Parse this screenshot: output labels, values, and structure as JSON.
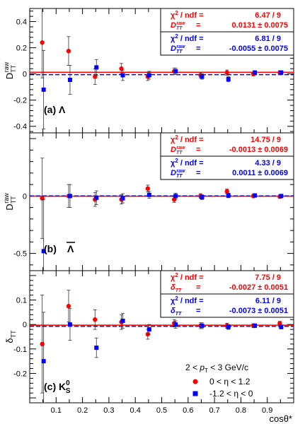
{
  "x_axis": {
    "label": "cosθ*",
    "range": [
      0.0,
      1.0
    ],
    "tick_labels": [
      "0.1",
      "0.2",
      "0.3",
      "0.4",
      "0.5",
      "0.6",
      "0.7",
      "0.8",
      "0.9"
    ]
  },
  "legend": {
    "pt_range": "2 < p_T < 3 GeV/c",
    "entries": [
      {
        "label": "0 < η < 1.2",
        "color": "#ff0000",
        "marker": "circle"
      },
      {
        "label": "-1.2 < η < 0",
        "color": "#0000ff",
        "marker": "square"
      }
    ]
  },
  "colors": {
    "red": "#ff0000",
    "blue": "#0000ff",
    "axis": "#000000"
  },
  "chart_data": [
    {
      "type": "scatter",
      "panel_label": "(a) Λ",
      "ylabel": "D_TT^raw",
      "ylim": [
        -0.45,
        0.5
      ],
      "y_tick_labels": [
        "-0.4",
        "-0.2",
        "0",
        "0.2",
        "0.4"
      ],
      "fit_box": [
        {
          "chi2_label": "χ² / ndf",
          "chi2_value": "6.47 / 9",
          "param_label": "D_TT^raw",
          "param_value": "0.0131 ± 0.0075",
          "color": "#ff0000"
        },
        {
          "chi2_label": "χ² / ndf",
          "chi2_value": "6.81 / 9",
          "param_label": "D_TT^raw",
          "param_value": "-0.0055 ± 0.0075",
          "color": "#0000ff"
        }
      ],
      "fit_lines": [
        {
          "series": "0 < η < 1.2",
          "value": 0.0131,
          "style": "solid"
        },
        {
          "series": "-1.2 < η < 0",
          "value": -0.0055,
          "style": "dashed"
        }
      ],
      "series": [
        {
          "name": "0 < η < 1.2",
          "x": [
            0.05,
            0.15,
            0.25,
            0.35,
            0.45,
            0.55,
            0.65,
            0.75,
            0.85,
            0.95
          ],
          "y": [
            0.24,
            0.175,
            -0.02,
            0.04,
            -0.02,
            0.02,
            -0.01,
            0.01,
            0.0,
            0.01
          ],
          "err": [
            0.27,
            0.11,
            0.06,
            0.04,
            0.03,
            0.025,
            0.02,
            0.02,
            0.015,
            0.015
          ]
        },
        {
          "name": "-1.2 < η < 0",
          "x": [
            0.05,
            0.15,
            0.25,
            0.35,
            0.45,
            0.55,
            0.65,
            0.75,
            0.85,
            0.95
          ],
          "y": [
            -0.12,
            -0.045,
            0.05,
            -0.01,
            -0.01,
            0.02,
            -0.02,
            -0.04,
            0.01,
            0.01
          ],
          "err": [
            0.3,
            0.11,
            0.06,
            0.04,
            0.03,
            0.025,
            0.02,
            0.02,
            0.015,
            0.015
          ]
        }
      ]
    },
    {
      "type": "scatter",
      "panel_label": "(b) Λ̄",
      "ylabel": "D_TT^raw",
      "ylim": [
        -0.65,
        0.55
      ],
      "y_tick_labels": [
        "-0.5",
        "0"
      ],
      "fit_box": [
        {
          "chi2_label": "χ² / ndf",
          "chi2_value": "14.75 / 9",
          "param_label": "D_TT^raw",
          "param_value": "-0.0013 ± 0.0069",
          "color": "#ff0000"
        },
        {
          "chi2_label": "χ² / ndf",
          "chi2_value": "4.33 / 9",
          "param_label": "D_TT^raw",
          "param_value": "0.0011 ± 0.0069",
          "color": "#0000ff"
        }
      ],
      "fit_lines": [
        {
          "series": "0 < η < 1.2",
          "value": -0.0013,
          "style": "solid"
        },
        {
          "series": "-1.2 < η < 0",
          "value": 0.0011,
          "style": "dashed"
        }
      ],
      "series": [
        {
          "name": "0 < η < 1.2",
          "x": [
            0.05,
            0.15,
            0.25,
            0.35,
            0.45,
            0.55,
            0.65,
            0.75,
            0.85,
            0.95
          ],
          "y": [
            -0.02,
            0.0,
            -0.03,
            -0.03,
            0.065,
            -0.03,
            0.0,
            0.04,
            0.0,
            -0.005
          ],
          "err": [
            0.35,
            0.1,
            0.06,
            0.04,
            0.03,
            0.025,
            0.02,
            0.02,
            0.015,
            0.015
          ]
        },
        {
          "name": "-1.2 < η < 0",
          "x": [
            0.05,
            0.15,
            0.25,
            0.35,
            0.45,
            0.55,
            0.65,
            0.75,
            0.85,
            0.95
          ],
          "y": [
            -0.48,
            0.0,
            -0.015,
            -0.02,
            0.01,
            0.0,
            -0.01,
            0.005,
            0.005,
            0.0
          ],
          "err": [
            0.45,
            0.1,
            0.06,
            0.04,
            0.03,
            0.025,
            0.02,
            0.02,
            0.015,
            0.015
          ]
        }
      ]
    },
    {
      "type": "scatter",
      "panel_label": "(c) K_S^0",
      "ylabel": "δ_TT",
      "ylim": [
        -0.32,
        0.22
      ],
      "y_tick_labels": [
        "-0.2",
        "-0.1",
        "0",
        "0.1"
      ],
      "fit_box": [
        {
          "chi2_label": "χ² / ndf",
          "chi2_value": "7.75 / 9",
          "param_label": "δ_TT",
          "param_value": "-0.0027 ± 0.0051",
          "color": "#ff0000"
        },
        {
          "chi2_label": "χ² / ndf",
          "chi2_value": "6.11 / 9",
          "param_label": "δ_TT",
          "param_value": "-0.0073 ± 0.0051",
          "color": "#0000ff"
        }
      ],
      "fit_lines": [
        {
          "series": "0 < η < 1.2",
          "value": -0.0027,
          "style": "solid"
        },
        {
          "series": "-1.2 < η < 0",
          "value": -0.0073,
          "style": "dashed"
        }
      ],
      "series": [
        {
          "name": "0 < η < 1.2",
          "x": [
            0.05,
            0.15,
            0.25,
            0.35,
            0.45,
            0.55,
            0.65,
            0.75,
            0.85,
            0.95
          ],
          "y": [
            -0.08,
            0.075,
            0.02,
            0.01,
            -0.04,
            0.005,
            -0.005,
            -0.005,
            -0.005,
            0.005
          ],
          "err": [
            0.2,
            0.065,
            0.04,
            0.03,
            0.02,
            0.015,
            0.012,
            0.01,
            0.008,
            0.008
          ]
        },
        {
          "name": "-1.2 < η < 0",
          "x": [
            0.05,
            0.15,
            0.25,
            0.35,
            0.45,
            0.55,
            0.65,
            0.75,
            0.85,
            0.95
          ],
          "y": [
            -0.15,
            0.0,
            -0.095,
            0.015,
            -0.02,
            0.0,
            -0.005,
            -0.01,
            -0.005,
            -0.01
          ],
          "err": [
            0.2,
            0.065,
            0.04,
            0.03,
            0.02,
            0.015,
            0.012,
            0.01,
            0.008,
            0.008
          ]
        }
      ]
    }
  ]
}
